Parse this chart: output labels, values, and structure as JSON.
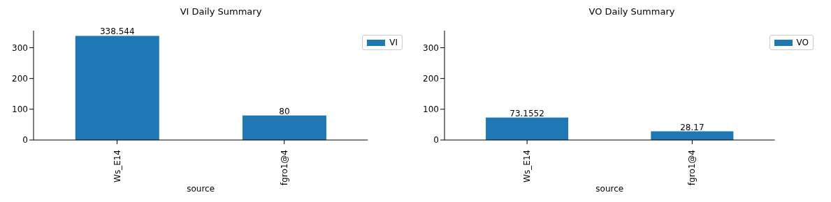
{
  "chart_data": [
    {
      "type": "bar",
      "title": "VI Daily Summary",
      "xlabel": "source",
      "categories": [
        "Ws_E14",
        "fgro1@4"
      ],
      "series": [
        {
          "name": "VI",
          "color": "#1f77b4",
          "values": [
            338.544,
            80
          ]
        }
      ],
      "ylim": [
        0,
        355.47
      ],
      "yticks": [
        0,
        100,
        200,
        300
      ],
      "data_labels": true,
      "legend": "top right",
      "grid": false
    },
    {
      "type": "bar",
      "title": "VO Daily Summary",
      "xlabel": "source",
      "categories": [
        "Ws_E14",
        "fgro1@4"
      ],
      "series": [
        {
          "name": "VO",
          "color": "#1f77b4",
          "values": [
            73.1552,
            28.17
          ]
        }
      ],
      "ylim": [
        0,
        355.47
      ],
      "yticks": [
        0,
        100,
        200,
        300
      ],
      "data_labels": true,
      "legend": "top right",
      "grid": false
    }
  ]
}
